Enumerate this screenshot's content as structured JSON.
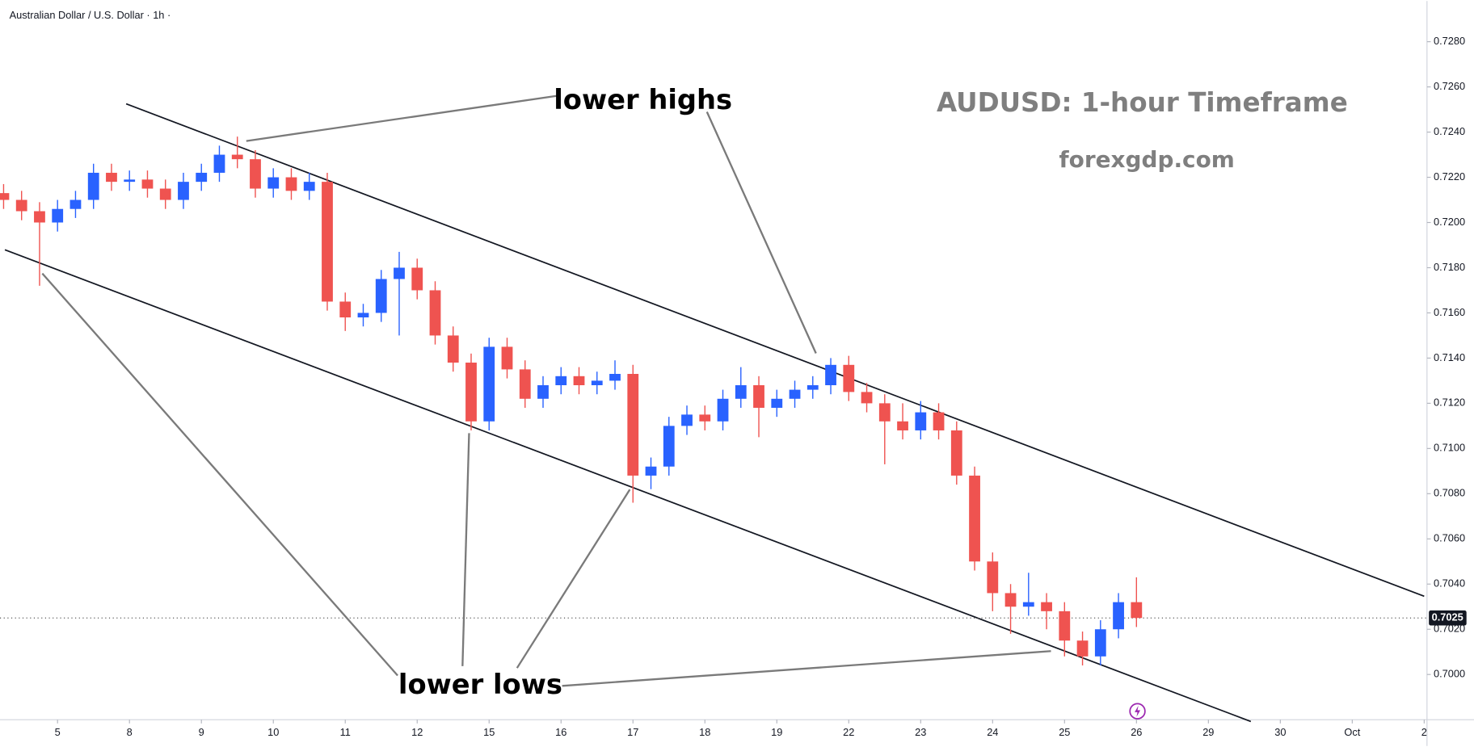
{
  "chart_data": {
    "type": "candlestick",
    "symbol": "Australian Dollar / U.S. Dollar · 1h ·",
    "title": "AUDUSD: 1-hour Timeframe",
    "subtitle": "forexgdp.com",
    "annotations": [
      "lower highs",
      "lower lows"
    ],
    "up_color": "#2962ff",
    "down_color": "#ef5350",
    "grid": false,
    "xlim": [
      -0.8,
      19.0
    ],
    "ylim": [
      0.698,
      0.7298
    ],
    "xticks": [
      {
        "value": 0,
        "label": "5"
      },
      {
        "value": 1,
        "label": "8"
      },
      {
        "value": 2,
        "label": "9"
      },
      {
        "value": 3,
        "label": "10"
      },
      {
        "value": 4,
        "label": "11"
      },
      {
        "value": 5,
        "label": "12"
      },
      {
        "value": 6,
        "label": "15"
      },
      {
        "value": 7,
        "label": "16"
      },
      {
        "value": 8,
        "label": "17"
      },
      {
        "value": 9,
        "label": "18"
      },
      {
        "value": 10,
        "label": "19"
      },
      {
        "value": 11,
        "label": "22"
      },
      {
        "value": 12,
        "label": "23"
      },
      {
        "value": 13,
        "label": "24"
      },
      {
        "value": 14,
        "label": "25"
      },
      {
        "value": 15,
        "label": "26"
      },
      {
        "value": 16,
        "label": "29"
      },
      {
        "value": 17,
        "label": "30"
      },
      {
        "value": 18,
        "label": "Oct"
      },
      {
        "value": 19,
        "label": "2"
      }
    ],
    "yticks": [
      {
        "value": 0.7,
        "label": "0.7000"
      },
      {
        "value": 0.702,
        "label": "0.7020"
      },
      {
        "value": 0.704,
        "label": "0.7040"
      },
      {
        "value": 0.706,
        "label": "0.7060"
      },
      {
        "value": 0.708,
        "label": "0.7080"
      },
      {
        "value": 0.71,
        "label": "0.7100"
      },
      {
        "value": 0.712,
        "label": "0.7120"
      },
      {
        "value": 0.714,
        "label": "0.7140"
      },
      {
        "value": 0.716,
        "label": "0.7160"
      },
      {
        "value": 0.718,
        "label": "0.7180"
      },
      {
        "value": 0.72,
        "label": "0.7200"
      },
      {
        "value": 0.722,
        "label": "0.7220"
      },
      {
        "value": 0.724,
        "label": "0.7240"
      },
      {
        "value": 0.726,
        "label": "0.7260"
      },
      {
        "value": 0.728,
        "label": "0.7280"
      }
    ],
    "last_price": {
      "value": 0.7025,
      "label": "0.7025"
    },
    "trendlines": [
      {
        "x": [
          0.954,
          19.0
        ],
        "y": [
          0.72525,
          0.70346
        ]
      },
      {
        "x": [
          -0.732,
          16.59
        ],
        "y": [
          0.71879,
          0.69792
        ]
      }
    ],
    "series": [
      {
        "x": [
          -0.75,
          -0.5,
          -0.25,
          0,
          0.25,
          0.5,
          0.75,
          1,
          1.25,
          1.5,
          1.75,
          2,
          2.25,
          2.5,
          2.75,
          3,
          3.25,
          3.5,
          3.75,
          4,
          4.25,
          4.5,
          4.75,
          5,
          5.25,
          5.5,
          5.75,
          6,
          6.25,
          6.5,
          6.75,
          7,
          7.25,
          7.5,
          7.75,
          8,
          8.25,
          8.5,
          8.75,
          9,
          9.25,
          9.5,
          9.75,
          10,
          10.25,
          10.5,
          10.75,
          11,
          11.25,
          11.5,
          11.75,
          12,
          12.25,
          12.5,
          12.75,
          13,
          13.25,
          13.5,
          13.75,
          14,
          14.25,
          14.5,
          14.75,
          15
        ],
        "open": [
          0.7213,
          0.721,
          0.7205,
          0.72,
          0.7206,
          0.721,
          0.7222,
          0.7218,
          0.7219,
          0.7215,
          0.721,
          0.7218,
          0.7222,
          0.723,
          0.7228,
          0.7215,
          0.722,
          0.7214,
          0.7218,
          0.7165,
          0.7158,
          0.716,
          0.7175,
          0.718,
          0.717,
          0.715,
          0.7138,
          0.7112,
          0.7145,
          0.7135,
          0.7122,
          0.7128,
          0.7132,
          0.7128,
          0.713,
          0.7133,
          0.7088,
          0.7092,
          0.711,
          0.7115,
          0.7112,
          0.7122,
          0.7128,
          0.7118,
          0.7122,
          0.7126,
          0.7128,
          0.7137,
          0.7125,
          0.712,
          0.7112,
          0.7108,
          0.7116,
          0.7108,
          0.7088,
          0.705,
          0.7036,
          0.703,
          0.7032,
          0.7028,
          0.7015,
          0.7008,
          0.702,
          0.7032
        ],
        "high": [
          0.7217,
          0.7214,
          0.7209,
          0.721,
          0.7214,
          0.7226,
          0.7226,
          0.7223,
          0.7223,
          0.7219,
          0.7222,
          0.7226,
          0.7234,
          0.7238,
          0.7232,
          0.7224,
          0.7224,
          0.7222,
          0.7222,
          0.7169,
          0.7164,
          0.7179,
          0.7187,
          0.7184,
          0.7174,
          0.7154,
          0.7142,
          0.7149,
          0.7149,
          0.7139,
          0.7132,
          0.7136,
          0.7136,
          0.7134,
          0.7139,
          0.7137,
          0.7096,
          0.7114,
          0.7119,
          0.7119,
          0.7126,
          0.7136,
          0.7132,
          0.7126,
          0.713,
          0.7132,
          0.714,
          0.7141,
          0.7129,
          0.7124,
          0.712,
          0.7121,
          0.712,
          0.7112,
          0.7092,
          0.7054,
          0.704,
          0.7045,
          0.7036,
          0.7032,
          0.7019,
          0.7024,
          0.7036,
          0.7043
        ],
        "low": [
          0.7206,
          0.7201,
          0.7172,
          0.7196,
          0.7202,
          0.7206,
          0.7214,
          0.7214,
          0.7211,
          0.7206,
          0.7206,
          0.7214,
          0.7218,
          0.7224,
          0.7211,
          0.7211,
          0.721,
          0.721,
          0.7161,
          0.7152,
          0.7154,
          0.7156,
          0.715,
          0.7166,
          0.7146,
          0.7134,
          0.7108,
          0.7108,
          0.7131,
          0.7118,
          0.7118,
          0.7124,
          0.7124,
          0.7124,
          0.7126,
          0.7076,
          0.7082,
          0.7088,
          0.7106,
          0.7108,
          0.7108,
          0.7118,
          0.7105,
          0.7114,
          0.7118,
          0.7122,
          0.7124,
          0.7121,
          0.7116,
          0.7093,
          0.7104,
          0.7104,
          0.7104,
          0.7084,
          0.7046,
          0.7028,
          0.7018,
          0.7026,
          0.702,
          0.7008,
          0.7004,
          0.7004,
          0.7016,
          0.7021
        ],
        "close": [
          0.721,
          0.7205,
          0.72,
          0.7206,
          0.721,
          0.7222,
          0.7218,
          0.7219,
          0.7215,
          0.721,
          0.7218,
          0.7222,
          0.723,
          0.7228,
          0.7215,
          0.722,
          0.7214,
          0.7218,
          0.7165,
          0.7158,
          0.716,
          0.7175,
          0.718,
          0.717,
          0.715,
          0.7138,
          0.7112,
          0.7145,
          0.7135,
          0.7122,
          0.7128,
          0.7132,
          0.7128,
          0.713,
          0.7133,
          0.7088,
          0.7092,
          0.711,
          0.7115,
          0.7112,
          0.7122,
          0.7128,
          0.7118,
          0.7122,
          0.7126,
          0.7128,
          0.7137,
          0.7125,
          0.712,
          0.7112,
          0.7108,
          0.7116,
          0.7108,
          0.7088,
          0.705,
          0.7036,
          0.703,
          0.7032,
          0.7028,
          0.7015,
          0.7008,
          0.702,
          0.7032,
          0.7025
        ]
      }
    ]
  }
}
